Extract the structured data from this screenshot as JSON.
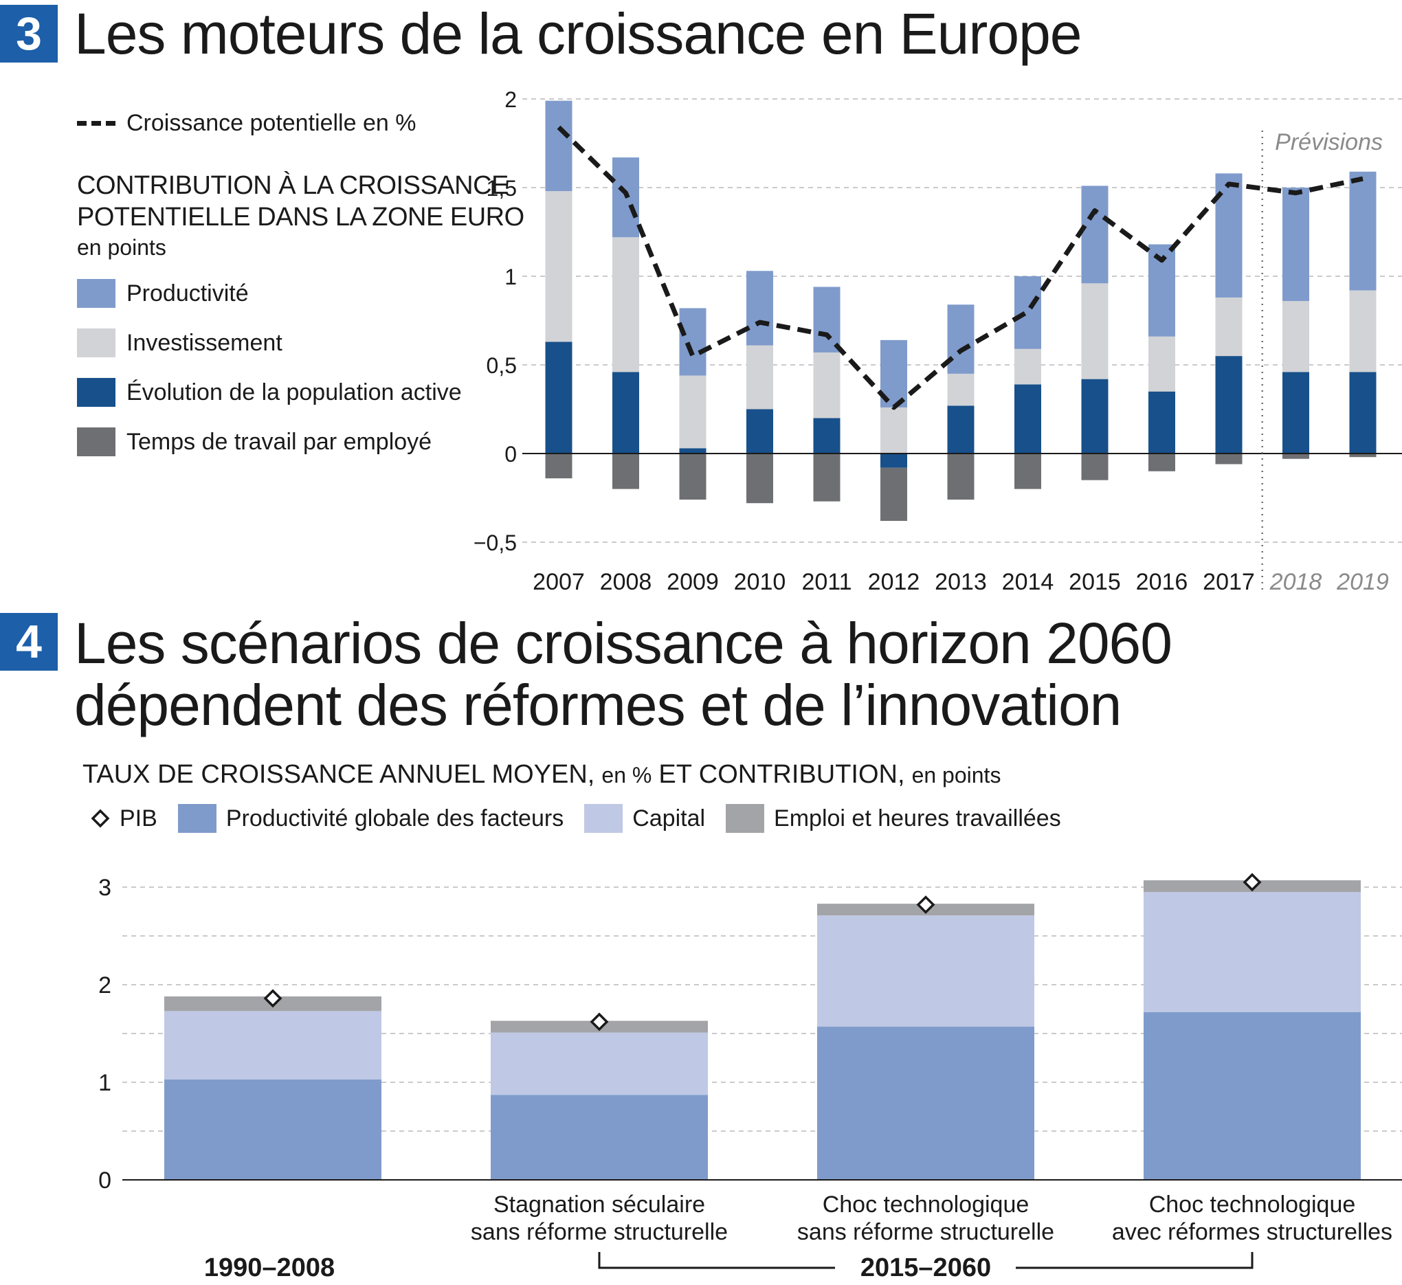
{
  "chart3": {
    "number": "3",
    "title": "Les moteurs de la croissance en Europe",
    "legend_line": "Croissance potentielle en %",
    "heading_line1": "CONTRIBUTION À LA CROISSANCE",
    "heading_line2": "POTENTIELLE DANS LA ZONE EURO",
    "heading_unit": "en points",
    "legend_items": [
      "Productivité",
      "Investissement",
      "Évolution de la population active",
      "Temps de travail par employé"
    ],
    "forecast_label": "Prévisions",
    "colors": {
      "productivite": "#7f9bcb",
      "investissement": "#d2d3d6",
      "population": "#17508a",
      "temps": "#6e6f72",
      "line": "#1a1a1a"
    }
  },
  "chart4": {
    "number": "4",
    "title_line1": "Les scénarios de croissance à horizon 2060",
    "title_line2": "dépendent des réformes et de  l’innovation",
    "subtitle_main": "TAUX DE CROISSANCE ANNUEL MOYEN,",
    "subtitle_unit1": "en %",
    "subtitle_main2": "ET CONTRIBUTION,",
    "subtitle_unit2": "en points",
    "legend_items": [
      "PIB",
      "Productivité globale des facteurs",
      "Capital",
      "Emploi et heures travaillées"
    ],
    "period_left": "1990–2008",
    "period_right": "2015–2060",
    "colors": {
      "ptf": "#7f9bcb",
      "capital": "#bfc8e4",
      "emploi": "#a3a4a7"
    }
  },
  "chart_data": [
    {
      "type": "bar",
      "stacked": true,
      "categories": [
        "2007",
        "2008",
        "2009",
        "2010",
        "2011",
        "2012",
        "2013",
        "2014",
        "2015",
        "2016",
        "2017",
        "2018",
        "2019"
      ],
      "forecast_categories": [
        "2018",
        "2019"
      ],
      "series": [
        {
          "name": "Productivité",
          "values": [
            0.51,
            0.45,
            0.38,
            0.42,
            0.37,
            0.38,
            0.39,
            0.41,
            0.55,
            0.52,
            0.7,
            0.64,
            0.67
          ]
        },
        {
          "name": "Investissement",
          "values": [
            0.85,
            0.76,
            0.41,
            0.36,
            0.37,
            0.26,
            0.18,
            0.2,
            0.54,
            0.31,
            0.33,
            0.4,
            0.46
          ]
        },
        {
          "name": "Évolution de la population active",
          "values": [
            0.63,
            0.46,
            0.03,
            0.25,
            0.2,
            -0.08,
            0.27,
            0.39,
            0.42,
            0.35,
            0.55,
            0.46,
            0.46
          ]
        },
        {
          "name": "Temps de travail par employé",
          "values": [
            -0.14,
            -0.2,
            -0.26,
            -0.28,
            -0.27,
            -0.3,
            -0.26,
            -0.2,
            -0.15,
            -0.1,
            -0.06,
            -0.03,
            -0.02
          ]
        }
      ],
      "line": {
        "name": "Croissance potentielle en %",
        "values": [
          1.84,
          1.47,
          0.55,
          0.74,
          0.67,
          0.26,
          0.58,
          0.8,
          1.37,
          1.09,
          1.52,
          1.47,
          1.55
        ]
      },
      "y_ticks": [
        "2",
        "1,5",
        "1",
        "0,5",
        "0",
        "−0,5"
      ],
      "ylim": [
        -0.5,
        2
      ],
      "grid": true
    },
    {
      "type": "bar",
      "stacked": true,
      "categories": [
        "",
        "Stagnation séculaire sans réforme structurelle",
        "Choc technologique sans réforme structurelle",
        "Choc technologique avec réformes structurelles"
      ],
      "category_lines": [
        [
          ""
        ],
        [
          "Stagnation séculaire",
          "sans réforme structurelle"
        ],
        [
          "Choc technologique",
          "sans réforme structurelle"
        ],
        [
          "Choc technologique",
          "avec réformes structurelles"
        ]
      ],
      "series": [
        {
          "name": "Productivité globale des facteurs",
          "values": [
            1.03,
            0.87,
            1.57,
            1.72
          ]
        },
        {
          "name": "Capital",
          "values": [
            0.7,
            0.64,
            1.14,
            1.23
          ]
        },
        {
          "name": "Emploi et heures travaillées",
          "values": [
            0.15,
            0.12,
            0.12,
            0.12
          ]
        }
      ],
      "markers": {
        "name": "PIB",
        "values": [
          1.86,
          1.62,
          2.82,
          3.05
        ]
      },
      "y_ticks": [
        "3",
        "2",
        "1",
        "0"
      ],
      "ylim": [
        0,
        3.2
      ],
      "grid": true
    }
  ]
}
